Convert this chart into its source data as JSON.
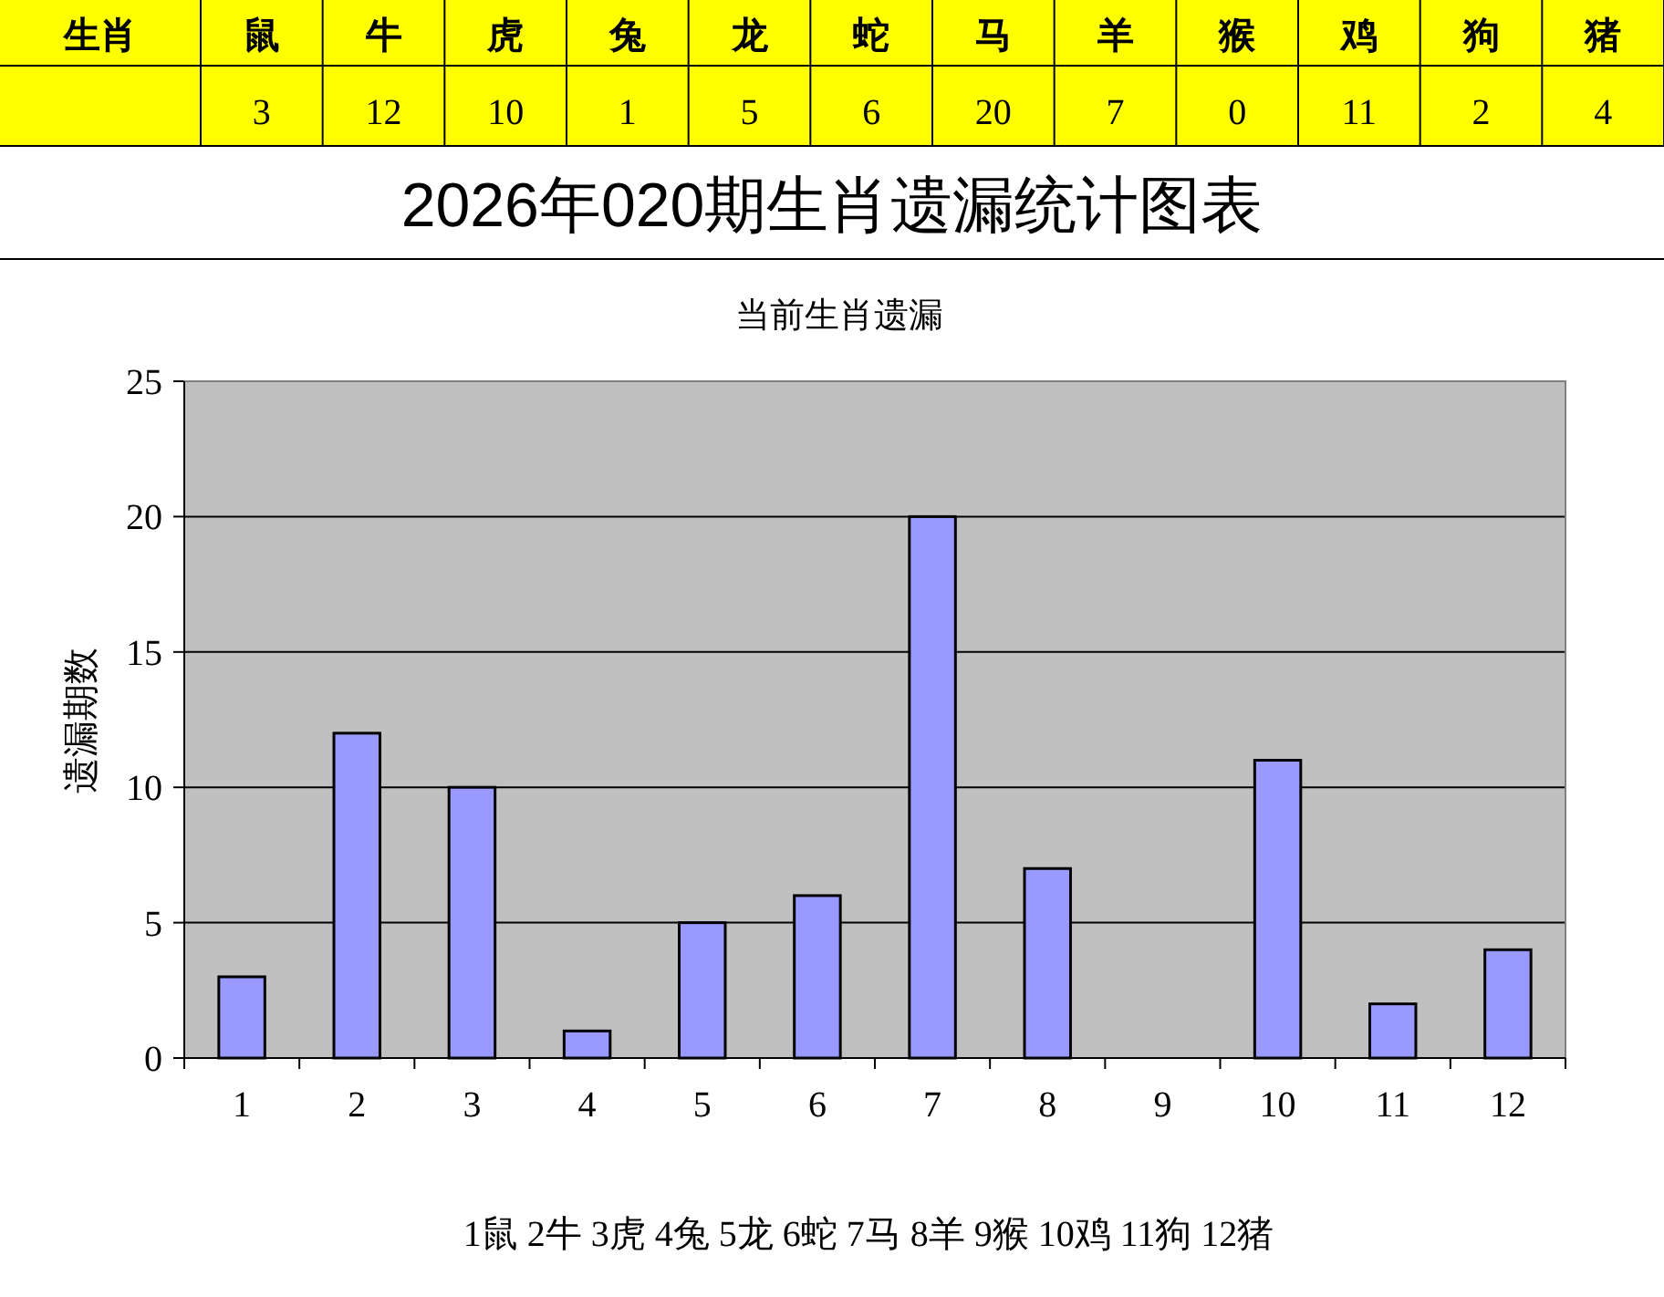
{
  "chart_data": [
    {
      "type": "other",
      "annotations": [
        "生肖",
        "鼠",
        "牛",
        "虎",
        "兔",
        "龙",
        "蛇",
        "马",
        "羊",
        "猴",
        "鸡",
        "狗",
        "猪",
        "3",
        "12",
        "10",
        "1",
        "5",
        "6",
        "20",
        "7",
        "0",
        "11",
        "2",
        "4"
      ]
    },
    {
      "type": "bar",
      "title": "2026年020期生肖遗漏统计图表",
      "subtitle": "当前生肖遗漏",
      "ylabel": "遗漏期数",
      "categories": [
        "1",
        "2",
        "3",
        "4",
        "5",
        "6",
        "7",
        "8",
        "9",
        "10",
        "11",
        "12"
      ],
      "values": [
        3,
        12,
        10,
        1,
        5,
        6,
        20,
        7,
        0,
        11,
        2,
        4
      ],
      "color": "#9999ff",
      "ylim": [
        0,
        25
      ],
      "yticks": [
        0,
        5,
        10,
        15,
        20,
        25
      ],
      "grid": "y",
      "annotations": [
        "1鼠  2牛  3虎  4兔  5龙  6蛇  7马  8羊  9猴  10鸡  11狗  12猪"
      ]
    }
  ]
}
